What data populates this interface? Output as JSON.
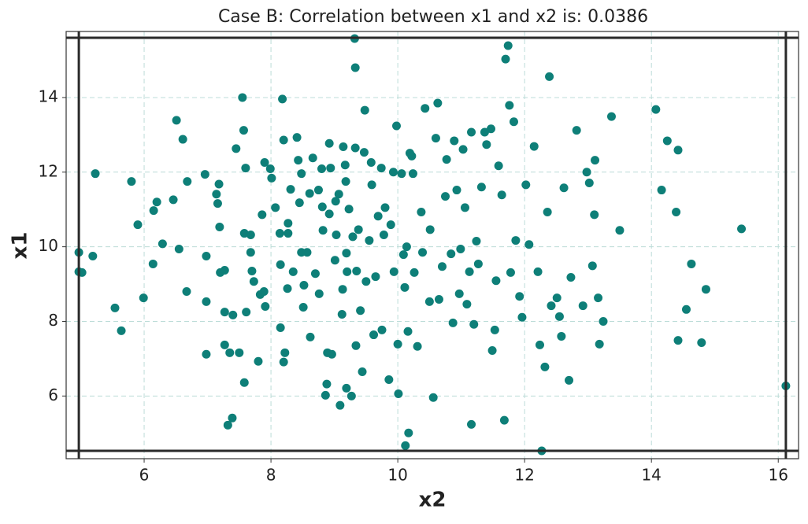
{
  "chart_data": {
    "type": "scatter",
    "title": "Case B: Correlation between x1 and x2 is: 0.0386",
    "x_label": "x2",
    "y_label": "x1",
    "color": "#0e7f78",
    "grid": true,
    "xlim": [
      4.77,
      16.32
    ],
    "ylim": [
      4.32,
      15.77
    ],
    "xticks": [
      6,
      8,
      10,
      12,
      14,
      16
    ],
    "yticks": [
      6,
      8,
      10,
      12,
      14
    ],
    "hlines": [
      4.53,
      15.6
    ],
    "vlines": [
      4.97,
      16.12
    ],
    "x": [
      4.97,
      4.97,
      5.02,
      5.19,
      5.23,
      5.54,
      5.64,
      5.8,
      5.9,
      5.99,
      6.14,
      6.15,
      6.2,
      6.29,
      6.46,
      6.51,
      6.55,
      6.61,
      6.67,
      6.68,
      6.96,
      6.98,
      6.98,
      6.98,
      7.14,
      7.16,
      7.18,
      7.19,
      7.2,
      7.27,
      7.27,
      7.27,
      7.32,
      7.35,
      7.39,
      7.4,
      7.45,
      7.5,
      7.55,
      7.57,
      7.58,
      7.6,
      7.58,
      7.61,
      7.68,
      7.7,
      7.68,
      7.73,
      7.8,
      7.83,
      7.89,
      7.86,
      7.91,
      7.9,
      7.99,
      8.01,
      8.07,
      8.14,
      8.15,
      8.15,
      8.18,
      8.2,
      8.2,
      8.22,
      8.26,
      8.27,
      8.27,
      8.31,
      8.35,
      8.41,
      8.43,
      8.45,
      8.48,
      8.48,
      8.51,
      8.52,
      8.57,
      8.61,
      8.62,
      8.66,
      8.7,
      8.75,
      8.76,
      8.8,
      8.81,
      8.82,
      8.86,
      8.88,
      8.89,
      8.92,
      8.92,
      8.94,
      8.96,
      9.01,
      9.02,
      9.03,
      9.07,
      9.09,
      9.12,
      9.13,
      9.14,
      9.17,
      9.18,
      9.19,
      9.19,
      9.2,
      9.23,
      9.27,
      9.29,
      9.32,
      9.33,
      9.33,
      9.34,
      9.35,
      9.38,
      9.41,
      9.44,
      9.47,
      9.48,
      9.5,
      9.55,
      9.58,
      9.59,
      9.62,
      9.65,
      9.69,
      9.74,
      9.75,
      9.78,
      9.8,
      9.86,
      9.89,
      9.93,
      9.94,
      9.98,
      10.0,
      10.01,
      10.06,
      10.09,
      10.11,
      10.12,
      10.14,
      10.16,
      10.17,
      10.19,
      10.22,
      10.24,
      10.26,
      10.31,
      10.37,
      10.39,
      10.43,
      10.5,
      10.51,
      10.56,
      10.6,
      10.63,
      10.65,
      10.7,
      10.75,
      10.77,
      10.84,
      10.87,
      10.89,
      10.93,
      10.97,
      10.99,
      11.03,
      11.06,
      11.09,
      11.13,
      11.16,
      11.16,
      11.2,
      11.24,
      11.27,
      11.32,
      11.37,
      11.4,
      11.47,
      11.49,
      11.53,
      11.55,
      11.59,
      11.64,
      11.68,
      11.7,
      11.74,
      11.76,
      11.78,
      11.83,
      11.86,
      11.92,
      11.96,
      12.02,
      12.07,
      12.15,
      12.21,
      12.24,
      12.27,
      12.32,
      12.36,
      12.39,
      12.42,
      12.51,
      12.55,
      12.58,
      12.62,
      12.7,
      12.73,
      12.82,
      12.92,
      12.98,
      13.02,
      13.07,
      13.1,
      13.11,
      13.16,
      13.18,
      13.24,
      13.37,
      13.5,
      14.07,
      14.16,
      14.25,
      14.39,
      14.42,
      14.42,
      14.55,
      14.63,
      14.79,
      14.86,
      15.42,
      16.12
    ],
    "values": [
      9.85,
      9.33,
      9.31,
      9.75,
      11.96,
      8.36,
      7.75,
      11.75,
      10.59,
      8.63,
      9.54,
      10.97,
      11.2,
      10.08,
      11.26,
      13.39,
      9.94,
      12.88,
      8.8,
      11.75,
      11.94,
      9.75,
      8.53,
      7.12,
      11.41,
      11.16,
      11.68,
      10.53,
      9.31,
      9.37,
      8.25,
      7.37,
      5.22,
      7.16,
      5.41,
      8.17,
      12.63,
      7.16,
      14.0,
      13.12,
      6.36,
      12.11,
      10.36,
      8.25,
      10.32,
      9.35,
      9.85,
      9.07,
      6.93,
      8.72,
      8.8,
      10.86,
      8.4,
      12.26,
      12.09,
      11.84,
      11.05,
      10.36,
      9.52,
      7.83,
      13.96,
      12.86,
      6.91,
      7.16,
      8.88,
      10.63,
      10.36,
      11.54,
      9.33,
      12.93,
      12.32,
      11.18,
      11.96,
      9.85,
      8.38,
      8.97,
      9.85,
      11.43,
      7.58,
      12.38,
      9.28,
      11.52,
      8.74,
      12.09,
      11.07,
      10.44,
      6.02,
      6.32,
      7.16,
      12.77,
      10.88,
      12.11,
      7.12,
      9.64,
      11.22,
      10.32,
      11.41,
      5.75,
      8.19,
      8.86,
      12.68,
      12.19,
      11.75,
      9.83,
      6.21,
      9.33,
      11.01,
      6.0,
      10.27,
      15.58,
      14.8,
      12.65,
      7.35,
      9.35,
      10.46,
      8.29,
      6.65,
      12.53,
      13.66,
      9.07,
      10.17,
      12.26,
      11.66,
      7.64,
      9.2,
      10.82,
      12.11,
      7.77,
      10.32,
      11.05,
      6.44,
      10.59,
      12.0,
      9.33,
      13.24,
      7.39,
      6.06,
      11.96,
      9.79,
      8.91,
      4.67,
      10.0,
      7.73,
      5.01,
      12.51,
      12.43,
      11.96,
      9.31,
      7.33,
      10.93,
      9.85,
      13.71,
      8.53,
      10.46,
      5.96,
      12.91,
      13.85,
      8.59,
      9.47,
      11.35,
      12.34,
      9.81,
      7.96,
      12.84,
      11.52,
      8.74,
      9.94,
      12.61,
      11.05,
      8.46,
      9.33,
      13.07,
      5.24,
      7.92,
      10.15,
      9.54,
      11.6,
      13.07,
      12.74,
      13.16,
      7.22,
      7.77,
      9.09,
      12.17,
      11.39,
      5.35,
      15.03,
      15.39,
      13.79,
      9.31,
      13.35,
      10.17,
      8.67,
      8.11,
      11.66,
      10.06,
      12.69,
      9.33,
      7.37,
      4.53,
      6.78,
      10.93,
      14.56,
      8.42,
      8.63,
      8.13,
      7.6,
      11.58,
      6.42,
      9.18,
      13.12,
      8.42,
      12.0,
      11.71,
      9.49,
      10.86,
      12.32,
      8.63,
      7.39,
      8.0,
      13.49,
      10.44,
      13.68,
      11.52,
      12.84,
      10.93,
      12.59,
      7.49,
      8.32,
      9.54,
      7.43,
      8.86,
      10.48,
      6.27
    ]
  }
}
